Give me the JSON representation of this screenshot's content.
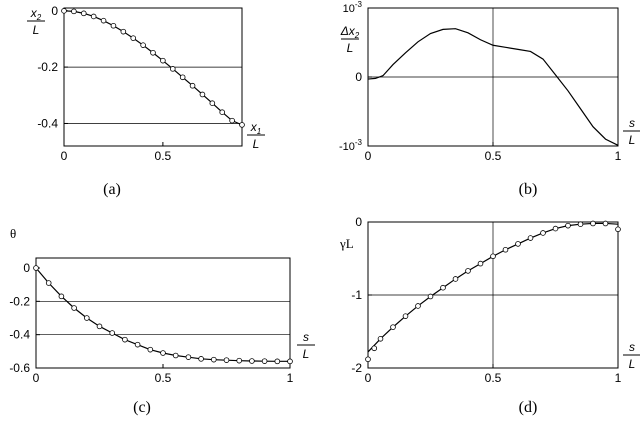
{
  "chart_data": [
    {
      "panel": "a",
      "type": "line",
      "caption": "(a)",
      "xlabel_num": "x1",
      "xlabel_den": "L",
      "ylabel_num": "x2",
      "ylabel_den": "L",
      "xlim": [
        0,
        0.9
      ],
      "ylim": [
        -0.48,
        0.01
      ],
      "xticks": [
        0,
        0.5
      ],
      "xticklabels": [
        "0",
        "0.5"
      ],
      "yticks": [
        0,
        -0.2,
        -0.4
      ],
      "yticklabels": [
        "0",
        "-0.2",
        "-0.4"
      ],
      "hgrid": [
        -0.2,
        -0.4
      ],
      "vgrid": [],
      "series": [
        {
          "style": "solid",
          "x": [
            0,
            0.05,
            0.1,
            0.15,
            0.2,
            0.25,
            0.3,
            0.35,
            0.4,
            0.45,
            0.5,
            0.55,
            0.6,
            0.65,
            0.7,
            0.75,
            0.8,
            0.85,
            0.9
          ],
          "y": [
            0,
            -0.002,
            -0.009,
            -0.02,
            -0.035,
            -0.053,
            -0.074,
            -0.097,
            -0.122,
            -0.149,
            -0.177,
            -0.206,
            -0.236,
            -0.266,
            -0.297,
            -0.328,
            -0.36,
            -0.39,
            -0.405
          ]
        },
        {
          "style": "markers",
          "x": [
            0,
            0.05,
            0.1,
            0.15,
            0.2,
            0.25,
            0.3,
            0.35,
            0.4,
            0.45,
            0.5,
            0.55,
            0.6,
            0.65,
            0.7,
            0.75,
            0.8,
            0.85,
            0.9
          ],
          "y": [
            0,
            -0.002,
            -0.009,
            -0.02,
            -0.035,
            -0.053,
            -0.074,
            -0.097,
            -0.122,
            -0.149,
            -0.177,
            -0.206,
            -0.236,
            -0.266,
            -0.297,
            -0.328,
            -0.36,
            -0.39,
            -0.405
          ]
        }
      ]
    },
    {
      "panel": "b",
      "type": "line",
      "caption": "(b)",
      "xlabel_num": "s",
      "xlabel_den": "L",
      "ylabel_num": "Δx2",
      "ylabel_den": "L",
      "xlim": [
        0,
        1
      ],
      "ylim": [
        -0.001,
        0.001
      ],
      "xticks": [
        0,
        0.5,
        1
      ],
      "xticklabels": [
        "0",
        "0.5",
        "1"
      ],
      "yticks": [
        0.001,
        0,
        -0.001
      ],
      "yticklabels": [
        "10-3",
        "0",
        "-10-3"
      ],
      "hgrid": [
        0
      ],
      "vgrid": [
        0.5
      ],
      "series": [
        {
          "style": "solid",
          "x": [
            0,
            0.03,
            0.06,
            0.08,
            0.1,
            0.15,
            0.2,
            0.25,
            0.3,
            0.35,
            0.4,
            0.45,
            0.5,
            0.55,
            0.6,
            0.65,
            0.7,
            0.75,
            0.8,
            0.85,
            0.9,
            0.95,
            1.0
          ],
          "y": [
            -3e-05,
            -2e-05,
            2e-05,
            0.0001,
            0.00018,
            0.00035,
            0.00051,
            0.00063,
            0.00069,
            0.0007,
            0.00064,
            0.00054,
            0.00046,
            0.00043,
            0.0004,
            0.00037,
            0.00026,
            3e-05,
            -0.0002,
            -0.00046,
            -0.00072,
            -0.0009,
            -0.00099
          ]
        }
      ]
    },
    {
      "panel": "c",
      "type": "line",
      "caption": "(c)",
      "xlabel_num": "s",
      "xlabel_den": "L",
      "ylabel": "θ",
      "xlim": [
        0,
        1
      ],
      "ylim": [
        -0.6,
        0.06
      ],
      "xticks": [
        0,
        0.5,
        1
      ],
      "xticklabels": [
        "0",
        "0.5",
        "1"
      ],
      "yticks": [
        0,
        -0.2,
        -0.4,
        -0.6
      ],
      "yticklabels": [
        "0",
        "-0.2",
        "-0.4",
        "-0.6"
      ],
      "hgrid": [
        -0.2,
        -0.4
      ],
      "vgrid": [],
      "series": [
        {
          "style": "solid",
          "x": [
            0,
            0.05,
            0.1,
            0.15,
            0.2,
            0.25,
            0.3,
            0.35,
            0.4,
            0.45,
            0.5,
            0.55,
            0.6,
            0.65,
            0.7,
            0.75,
            0.8,
            0.85,
            0.9,
            0.95,
            1.0
          ],
          "y": [
            0,
            -0.09,
            -0.17,
            -0.24,
            -0.3,
            -0.35,
            -0.39,
            -0.43,
            -0.46,
            -0.49,
            -0.51,
            -0.525,
            -0.535,
            -0.545,
            -0.55,
            -0.553,
            -0.556,
            -0.558,
            -0.559,
            -0.56,
            -0.56
          ]
        },
        {
          "style": "markers",
          "x": [
            0,
            0.05,
            0.1,
            0.15,
            0.2,
            0.25,
            0.3,
            0.35,
            0.4,
            0.45,
            0.5,
            0.55,
            0.6,
            0.65,
            0.7,
            0.75,
            0.8,
            0.85,
            0.9,
            0.95,
            1.0
          ],
          "y": [
            0,
            -0.09,
            -0.17,
            -0.24,
            -0.3,
            -0.35,
            -0.39,
            -0.43,
            -0.46,
            -0.49,
            -0.51,
            -0.525,
            -0.535,
            -0.545,
            -0.55,
            -0.553,
            -0.556,
            -0.558,
            -0.559,
            -0.56,
            -0.56
          ]
        }
      ]
    },
    {
      "panel": "d",
      "type": "line",
      "caption": "(d)",
      "xlabel_num": "s",
      "xlabel_den": "L",
      "ylabel": "γL",
      "xlim": [
        0,
        1
      ],
      "ylim": [
        -2,
        0
      ],
      "xticks": [
        0,
        0.5,
        1
      ],
      "xticklabels": [
        "0",
        "0.5",
        "1"
      ],
      "yticks": [
        0,
        -1,
        -2
      ],
      "yticklabels": [
        "0",
        "-1",
        "-2"
      ],
      "hgrid": [
        -1
      ],
      "vgrid": [
        0.5
      ],
      "series": [
        {
          "style": "solid",
          "x": [
            0,
            0.05,
            0.1,
            0.15,
            0.2,
            0.25,
            0.3,
            0.35,
            0.4,
            0.45,
            0.5,
            0.55,
            0.6,
            0.65,
            0.7,
            0.75,
            0.8,
            0.85,
            0.9,
            0.95,
            1.0
          ],
          "y": [
            -1.78,
            -1.6,
            -1.44,
            -1.29,
            -1.15,
            -1.02,
            -0.9,
            -0.78,
            -0.67,
            -0.57,
            -0.47,
            -0.38,
            -0.3,
            -0.22,
            -0.15,
            -0.09,
            -0.05,
            -0.03,
            -0.02,
            -0.02,
            -0.03
          ]
        },
        {
          "style": "markers",
          "x": [
            0,
            0.025,
            0.05,
            0.1,
            0.15,
            0.2,
            0.25,
            0.3,
            0.35,
            0.4,
            0.45,
            0.5,
            0.55,
            0.6,
            0.65,
            0.7,
            0.75,
            0.8,
            0.85,
            0.9,
            0.95,
            1.0
          ],
          "y": [
            -1.88,
            -1.73,
            -1.6,
            -1.44,
            -1.29,
            -1.15,
            -1.02,
            -0.9,
            -0.78,
            -0.67,
            -0.57,
            -0.47,
            -0.38,
            -0.3,
            -0.22,
            -0.15,
            -0.09,
            -0.05,
            -0.03,
            -0.02,
            -0.02,
            -0.1
          ]
        }
      ]
    }
  ]
}
